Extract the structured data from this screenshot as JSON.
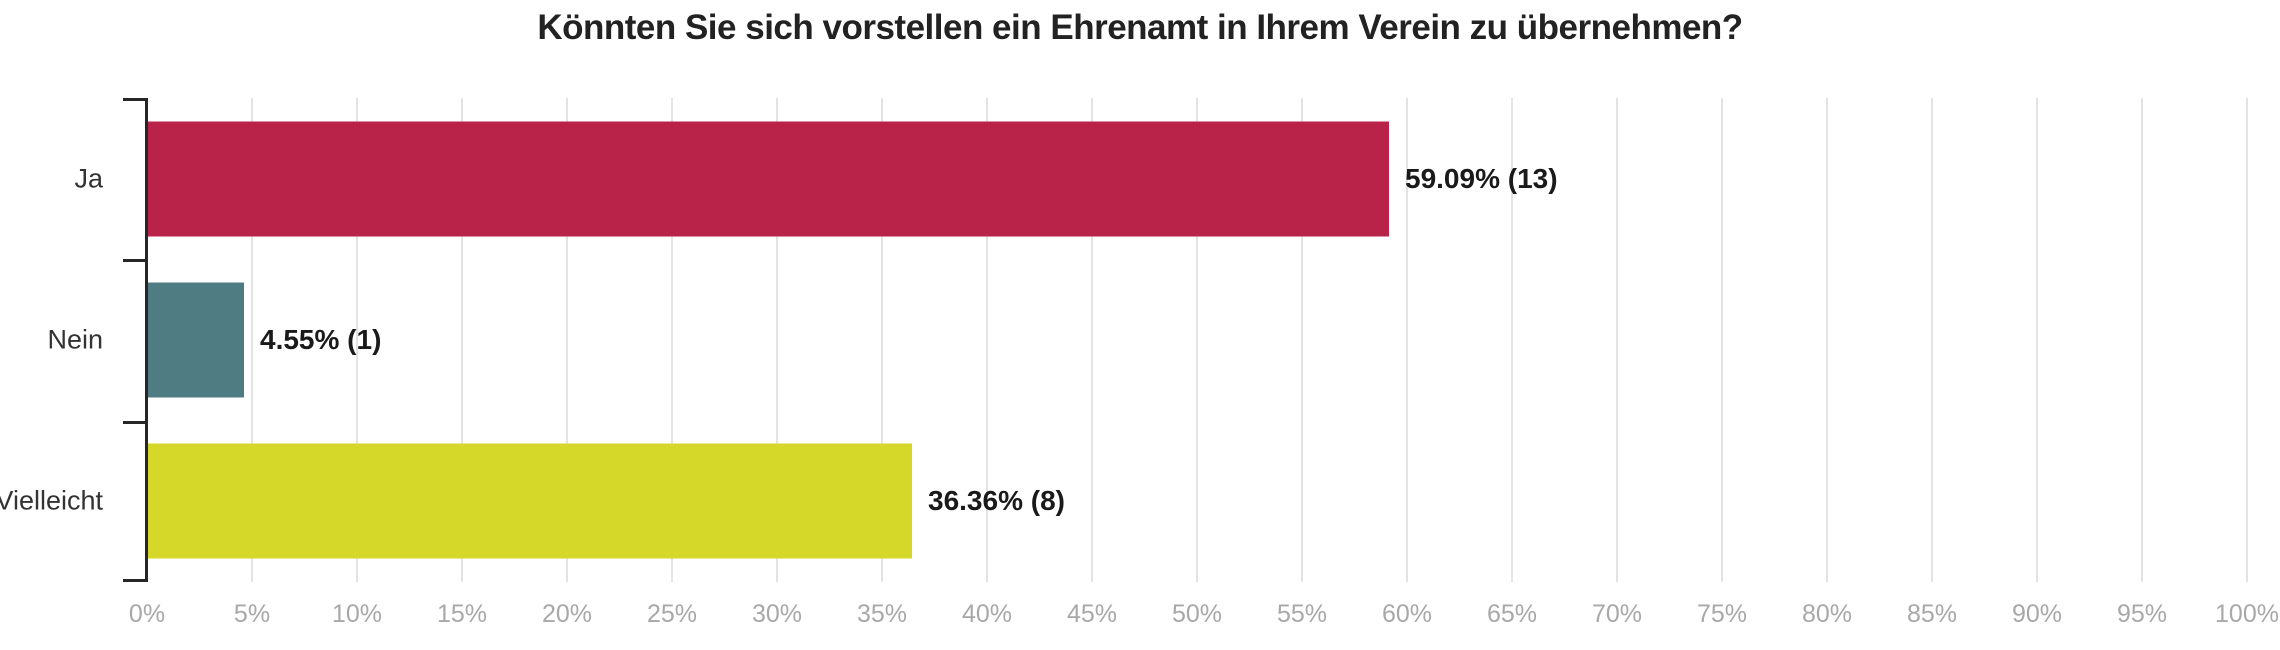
{
  "chart_data": {
    "type": "bar",
    "orientation": "horizontal",
    "title": "Könnten Sie sich vorstellen ein Ehrenamt in Ihrem Verein zu übernehmen?",
    "categories": [
      "Ja",
      "Nein",
      "Vielleicht"
    ],
    "values": [
      59.09,
      4.55,
      36.36
    ],
    "counts": [
      13,
      1,
      8
    ],
    "value_labels": [
      "59.09% (13)",
      "4.55% (1)",
      "36.36% (8)"
    ],
    "bar_colors": [
      "#BA2349",
      "#4F7B82",
      "#D5D829"
    ],
    "xlabel": "",
    "ylabel": "",
    "xlim": [
      0,
      100
    ],
    "x_tick_step": 5,
    "x_tick_labels": [
      "0%",
      "5%",
      "10%",
      "15%",
      "20%",
      "25%",
      "30%",
      "35%",
      "40%",
      "45%",
      "50%",
      "55%",
      "60%",
      "65%",
      "70%",
      "75%",
      "80%",
      "85%",
      "90%",
      "95%",
      "100%"
    ],
    "grid": "vertical",
    "legend": "none"
  },
  "colors": {
    "background": "#ffffff",
    "gridline": "#e3e3e3",
    "axis": "#262626",
    "title_text": "#222222",
    "category_text": "#333333",
    "value_text": "#1a1a1a",
    "tick_text": "#a8a8a8"
  }
}
